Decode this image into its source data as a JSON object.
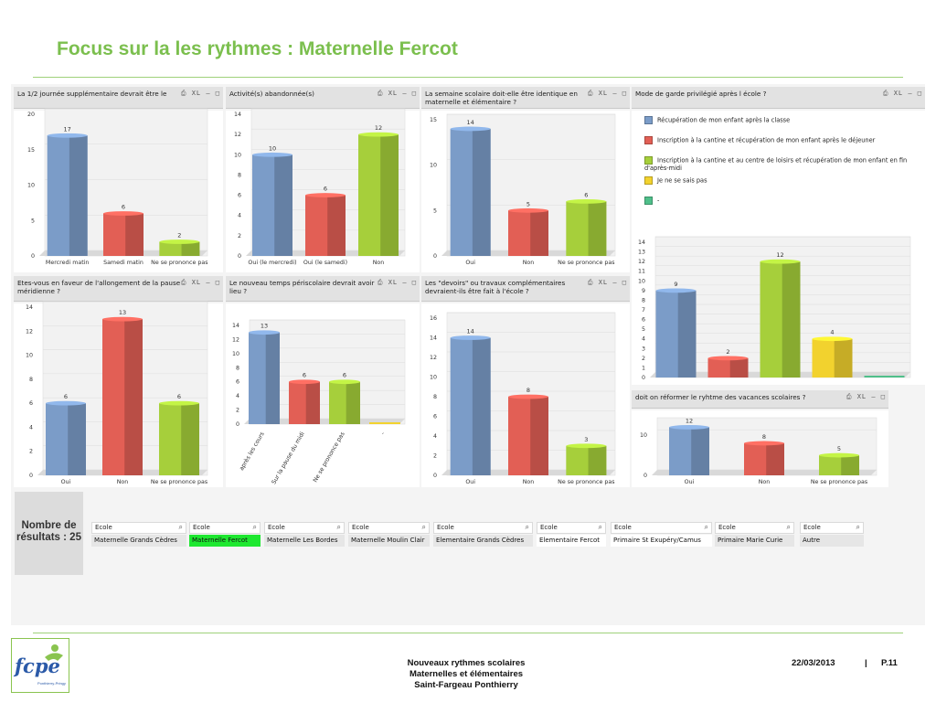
{
  "page": {
    "title": "Focus sur la les rythmes : Maternelle Fercot",
    "toolbar_icons": "⎙ XL ‒ □"
  },
  "colors": {
    "blue": "#7b9cc8",
    "red": "#e25f55",
    "green": "#a6cf3b",
    "yellow": "#f2d22e",
    "teal": "#4fbf8a",
    "accent": "#7bbf4e"
  },
  "legend": {
    "items": [
      {
        "label": "Récupération de mon enfant après la classe",
        "color": "blue"
      },
      {
        "label": "Inscription à la cantine et récupération de mon enfant après le déjeuner",
        "color": "red"
      },
      {
        "label": "Inscription à la cantine et au centre de loisirs et récupération de mon enfant en fin d'après-midi",
        "color": "green"
      },
      {
        "label": "Je ne se sais pas",
        "color": "yellow"
      },
      {
        "label": "-",
        "color": "teal"
      }
    ]
  },
  "chart_data": [
    {
      "id": "c1",
      "type": "bar",
      "title": "La 1/2 journée supplémentaire devrait être le",
      "categories": [
        "Mercredi matin",
        "Samedi matin",
        "Ne se prononce pas"
      ],
      "values": [
        17,
        6,
        2
      ],
      "yticks": [
        0,
        5,
        10,
        15,
        20
      ],
      "ylim": [
        0,
        20
      ]
    },
    {
      "id": "c2",
      "type": "bar",
      "title": "Activité(s) abandonnée(s)",
      "categories": [
        "Oui (le mercredi)",
        "Oui (le samedi)",
        "Non"
      ],
      "values": [
        10,
        6,
        12
      ],
      "yticks": [
        0,
        2,
        4,
        6,
        8,
        10,
        12,
        14
      ],
      "ylim": [
        0,
        14
      ]
    },
    {
      "id": "c3",
      "type": "bar",
      "title": "La semaine scolaire doit-elle être identique en maternelle et élémentaire ?",
      "categories": [
        "Oui",
        "Non",
        "Ne se prononce pas"
      ],
      "values": [
        14,
        5,
        6
      ],
      "yticks": [
        0,
        5,
        10,
        15
      ],
      "ylim": [
        0,
        15
      ]
    },
    {
      "id": "c4",
      "type": "bar",
      "title": "Mode de garde privilégié après l école ?",
      "categories": [
        "",
        "",
        "",
        "",
        ""
      ],
      "values": [
        9,
        2,
        12,
        4,
        0
      ],
      "yticks": [
        0,
        1,
        2,
        3,
        4,
        5,
        6,
        7,
        8,
        9,
        10,
        11,
        12,
        13,
        14
      ],
      "ylim": [
        0,
        14
      ]
    },
    {
      "id": "c5",
      "type": "bar",
      "title": "Etes-vous en faveur de l'allongement de la pause méridienne ?",
      "categories": [
        "Oui",
        "Non",
        "Ne se prononce pas"
      ],
      "values": [
        6,
        13,
        6
      ],
      "yticks": [
        0,
        2,
        4,
        6,
        8,
        10,
        12,
        14
      ],
      "ylim": [
        0,
        14
      ]
    },
    {
      "id": "c6",
      "type": "bar",
      "title": "Le nouveau temps périscolaire devrait avoir lieu ?",
      "categories": [
        "après les cours",
        "Sur la pause du midi",
        "Ne se prononce pas",
        "-"
      ],
      "values": [
        13,
        6,
        6,
        0
      ],
      "yticks": [
        0,
        2,
        4,
        6,
        8,
        10,
        12,
        14
      ],
      "ylim": [
        0,
        14
      ]
    },
    {
      "id": "c7",
      "type": "bar",
      "title": "Les \"devoirs\" ou travaux complémentaires devraient-ils être fait à l'école ?",
      "categories": [
        "Oui",
        "Non",
        "Ne se prononce pas"
      ],
      "values": [
        14,
        8,
        3
      ],
      "yticks": [
        0,
        2,
        4,
        6,
        8,
        10,
        12,
        14,
        16
      ],
      "ylim": [
        0,
        16
      ]
    },
    {
      "id": "c8",
      "type": "bar",
      "title": "doit on réformer le ryhtme des vacances scolaires ?",
      "categories": [
        "Oui",
        "Non",
        "Ne se prononce pas"
      ],
      "values": [
        12,
        8,
        5
      ],
      "yticks": [
        0,
        10
      ],
      "ylim": [
        0,
        13
      ]
    }
  ],
  "results": {
    "label": "Nombre de résultats : 25"
  },
  "filters": {
    "header": "Ecole",
    "items": [
      {
        "value": "Maternelle Grands Cèdres",
        "state": "normal"
      },
      {
        "value": "Maternelle Fercot",
        "state": "selected"
      },
      {
        "value": "Maternelle Les Bordes",
        "state": "normal"
      },
      {
        "value": "Maternelle Moulin Clair",
        "state": "normal"
      },
      {
        "value": "Elementaire Grands Cèdres",
        "state": "normal"
      },
      {
        "value": "Elementaire Fercot",
        "state": "white"
      },
      {
        "value": "Primaire St Exupéry/Camus",
        "state": "white"
      },
      {
        "value": "Primaire Marie Curie",
        "state": "normal"
      },
      {
        "value": "Autre",
        "state": "normal"
      }
    ]
  },
  "logo": {
    "text": "fcpe",
    "subtext": "Ponthierry-Pringy"
  },
  "footer": {
    "line1": "Nouveaux rythmes scolaires",
    "line2": "Maternelles et élémentaires",
    "line3": "Saint-Fargeau Ponthierry",
    "date": "22/03/2013",
    "separator": "|",
    "page": "P.11"
  }
}
